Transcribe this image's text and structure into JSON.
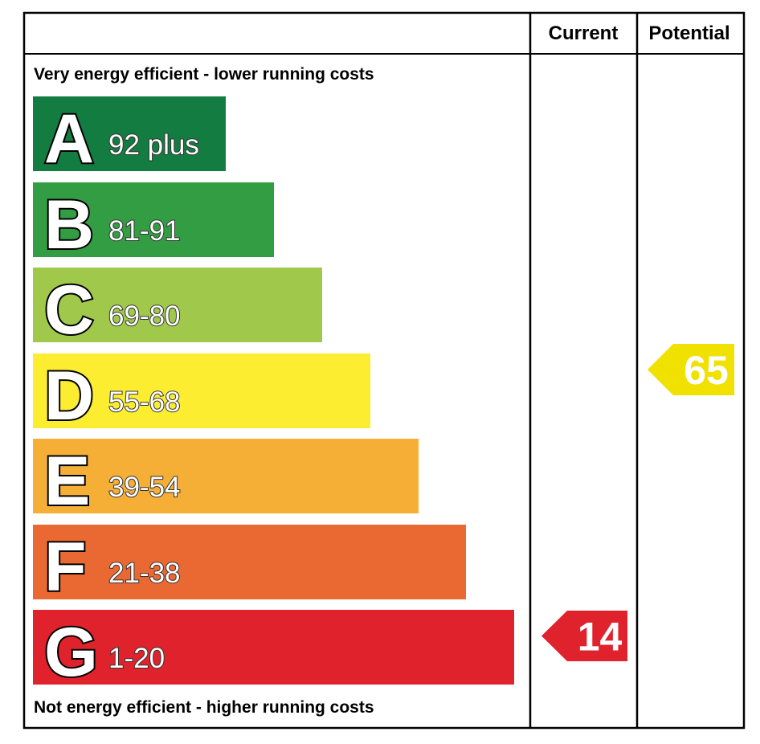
{
  "header": {
    "current_label": "Current",
    "potential_label": "Potential"
  },
  "top_note": "Very energy efficient - lower running costs",
  "bottom_note": "Not energy efficient - higher running costs",
  "chart_data": {
    "type": "bar",
    "bands": [
      {
        "letter": "A",
        "range": "92 plus",
        "color": "#127c41"
      },
      {
        "letter": "B",
        "range": "81-91",
        "color": "#339d43"
      },
      {
        "letter": "C",
        "range": "69-80",
        "color": "#a0c94b"
      },
      {
        "letter": "D",
        "range": "55-68",
        "color": "#fded31"
      },
      {
        "letter": "E",
        "range": "39-54",
        "color": "#f5ae36"
      },
      {
        "letter": "F",
        "range": "21-38",
        "color": "#ea6933"
      },
      {
        "letter": "G",
        "range": "1-20",
        "color": "#e0222c"
      }
    ],
    "current": {
      "value": "14",
      "band": "G",
      "color": "#e0222c"
    },
    "potential": {
      "value": "65",
      "band": "D",
      "color": "#f1e100"
    }
  }
}
